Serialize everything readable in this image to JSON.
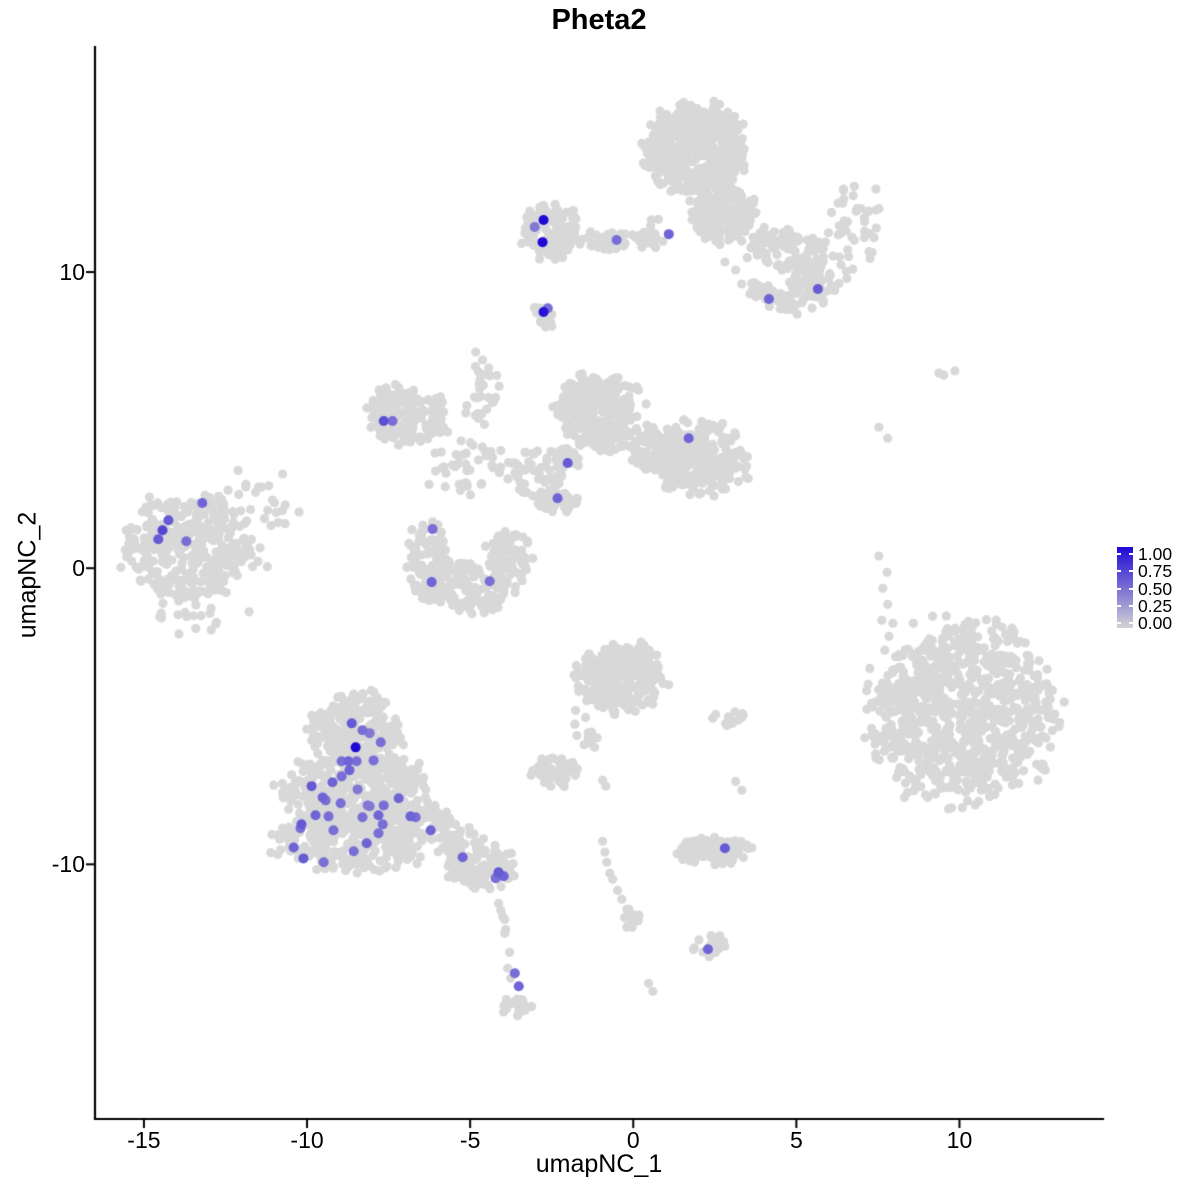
{
  "title": "Pheta2",
  "chart_data": {
    "type": "scatter",
    "title": "Pheta2",
    "xlabel": "umapNC_1",
    "ylabel": "umapNC_2",
    "xlim": [
      -16.5,
      14.4
    ],
    "ylim": [
      -18.6,
      17.6
    ],
    "x_ticks": [
      -15,
      -10,
      -5,
      0,
      5,
      10
    ],
    "y_ticks": [
      10,
      0,
      -10
    ],
    "grid": false,
    "background_point_color": "#d8d8d8",
    "color_low": "#d3d3d3",
    "color_high": "#1e09d6",
    "legend": {
      "position": "right",
      "labels": [
        "1.00",
        "0.75",
        "0.50",
        "0.25",
        "0.00"
      ],
      "values": [
        1.0,
        0.75,
        0.5,
        0.25,
        0.0
      ]
    },
    "clusters_format": "[center_x, center_y, radius_x, radius_y, n_points, rotation_deg]",
    "clusters": [
      [
        1.92,
        14.12,
        1.47,
        1.52,
        480,
        0
      ],
      [
        2.84,
        11.93,
        0.95,
        0.88,
        160,
        0
      ],
      [
        4.68,
        10.74,
        1.35,
        0.7,
        110,
        -20
      ],
      [
        5.51,
        9.56,
        0.74,
        0.68,
        70,
        0
      ],
      [
        4.22,
        9.16,
        0.95,
        0.3,
        45,
        -28
      ],
      [
        6.83,
        11.42,
        0.8,
        1.6,
        45,
        0
      ],
      [
        -0.69,
        11.05,
        1.25,
        0.32,
        40,
        0
      ],
      [
        -2.53,
        11.38,
        0.88,
        0.92,
        130,
        0
      ],
      [
        -2.78,
        8.55,
        0.28,
        0.45,
        16,
        30
      ],
      [
        -13.73,
        0.61,
        1.8,
        1.78,
        330,
        0
      ],
      [
        -11.67,
        1.62,
        1.3,
        1.5,
        45,
        0
      ],
      [
        -13.11,
        -1.59,
        1.6,
        0.8,
        18,
        0
      ],
      [
        -6.27,
        0.27,
        0.62,
        1.28,
        90,
        0
      ],
      [
        -5.05,
        -0.68,
        1.3,
        0.78,
        150,
        0
      ],
      [
        -3.82,
        0.41,
        0.68,
        0.85,
        80,
        0
      ],
      [
        -7.28,
        5.27,
        0.78,
        0.95,
        130,
        0
      ],
      [
        -6.27,
        5.0,
        0.55,
        0.85,
        45,
        0
      ],
      [
        -4.98,
        3.38,
        1.4,
        0.8,
        45,
        0
      ],
      [
        -4.68,
        6.01,
        0.55,
        1.25,
        26,
        0
      ],
      [
        -1.0,
        5.27,
        1.25,
        1.2,
        300,
        0
      ],
      [
        0.6,
        4.05,
        0.8,
        0.75,
        90,
        0
      ],
      [
        2.07,
        3.75,
        1.4,
        1.25,
        230,
        0
      ],
      [
        -2.22,
        3.58,
        0.6,
        0.6,
        35,
        0
      ],
      [
        -2.38,
        2.3,
        0.65,
        0.45,
        45,
        0
      ],
      [
        -3.08,
        3.24,
        0.8,
        0.75,
        35,
        0
      ],
      [
        0.54,
        11.25,
        0.45,
        0.6,
        14,
        0
      ],
      [
        -0.38,
        -3.68,
        1.3,
        1.1,
        280,
        0
      ],
      [
        -1.49,
        -5.44,
        0.3,
        0.85,
        14,
        15
      ],
      [
        -2.38,
        -6.89,
        0.7,
        0.5,
        55,
        0
      ],
      [
        2.9,
        -5.1,
        0.5,
        0.26,
        14,
        0
      ],
      [
        -8.51,
        -5.47,
        1.3,
        1.25,
        240,
        0
      ],
      [
        -8.51,
        -7.5,
        2.1,
        1.3,
        380,
        0
      ],
      [
        -8.66,
        -9.19,
        2.2,
        1.0,
        300,
        0
      ],
      [
        -6.27,
        -8.58,
        1.25,
        0.6,
        90,
        -20
      ],
      [
        -4.83,
        -9.93,
        1.15,
        0.8,
        120,
        -15
      ],
      [
        -3.57,
        -14.83,
        0.45,
        0.35,
        22,
        0
      ],
      [
        2.44,
        -9.53,
        1.0,
        0.5,
        85,
        0
      ],
      [
        2.32,
        -12.7,
        0.45,
        0.4,
        22,
        0
      ],
      [
        10.11,
        -4.86,
        2.7,
        2.9,
        850,
        0
      ],
      [
        -0.08,
        -11.72,
        0.3,
        0.5,
        12,
        0
      ]
    ],
    "background_points": [
      [
        -4.13,
        -11.32
      ],
      [
        -4.06,
        -11.55
      ],
      [
        -4.0,
        -11.76
      ],
      [
        -3.94,
        -11.86
      ],
      [
        -3.91,
        -12.2
      ],
      [
        -3.94,
        -12.33
      ],
      [
        -3.79,
        -12.97
      ],
      [
        -3.85,
        -13.51
      ],
      [
        -3.76,
        -13.85
      ],
      [
        -0.94,
        -9.22
      ],
      [
        -0.87,
        -9.59
      ],
      [
        -0.81,
        -9.93
      ],
      [
        -0.72,
        -10.3
      ],
      [
        -0.63,
        -10.5
      ],
      [
        -0.48,
        -10.88
      ],
      [
        -0.35,
        -11.18
      ],
      [
        -0.2,
        -11.52
      ],
      [
        -0.11,
        -11.79
      ],
      [
        -0.17,
        -12.09
      ],
      [
        0.47,
        -14.02
      ],
      [
        0.6,
        -14.29
      ],
      [
        7.53,
        0.41
      ],
      [
        7.78,
        -0.14
      ],
      [
        7.65,
        -0.68
      ],
      [
        7.8,
        -1.22
      ],
      [
        7.62,
        -1.76
      ],
      [
        7.84,
        -2.3
      ],
      [
        7.71,
        -2.77
      ],
      [
        7.96,
        -1.86
      ],
      [
        9.37,
        6.59
      ],
      [
        9.52,
        6.52
      ],
      [
        9.86,
        6.66
      ],
      [
        7.53,
        4.76
      ],
      [
        7.8,
        4.39
      ],
      [
        -10.75,
        3.18
      ],
      [
        -11.49,
        2.74
      ],
      [
        -11.06,
        2.3
      ],
      [
        -4.83,
        7.3
      ],
      [
        -4.62,
        7.03
      ],
      [
        -4.43,
        6.76
      ],
      [
        3.14,
        -7.2
      ],
      [
        3.33,
        -7.5
      ],
      [
        -0.94,
        -7.16
      ],
      [
        -0.84,
        -7.36
      ],
      [
        2.81,
        10.34
      ],
      [
        3.14,
        10.07
      ]
    ],
    "highlight_points_format": "[x, y, expression_value_0_to_1]",
    "highlight_points": [
      [
        -2.75,
        11.76,
        1.0
      ],
      [
        -2.78,
        11.01,
        1.0
      ],
      [
        -3.02,
        11.52,
        0.45
      ],
      [
        -0.51,
        11.08,
        0.5
      ],
      [
        1.09,
        11.28,
        0.55
      ],
      [
        5.66,
        9.43,
        0.6
      ],
      [
        4.16,
        9.09,
        0.55
      ],
      [
        -2.75,
        8.65,
        0.95
      ],
      [
        -2.62,
        8.78,
        0.5
      ],
      [
        -13.21,
        2.2,
        0.55
      ],
      [
        -14.25,
        1.62,
        0.6
      ],
      [
        -14.43,
        1.28,
        0.7
      ],
      [
        -14.56,
        0.98,
        0.6
      ],
      [
        -13.7,
        0.91,
        0.5
      ],
      [
        -7.65,
        4.97,
        0.65
      ],
      [
        -7.38,
        4.97,
        0.5
      ],
      [
        1.7,
        4.39,
        0.55
      ],
      [
        -2.01,
        3.55,
        0.6
      ],
      [
        -2.32,
        2.36,
        0.55
      ],
      [
        -6.15,
        1.32,
        0.5
      ],
      [
        -6.18,
        -0.47,
        0.55
      ],
      [
        -4.4,
        -0.44,
        0.5
      ],
      [
        -8.63,
        -5.24,
        0.6
      ],
      [
        -8.3,
        -5.47,
        0.5
      ],
      [
        -8.08,
        -5.57,
        0.45
      ],
      [
        -7.74,
        -5.88,
        0.5
      ],
      [
        -8.51,
        -6.05,
        1.0
      ],
      [
        -8.94,
        -6.52,
        0.5
      ],
      [
        -8.73,
        -6.52,
        0.55
      ],
      [
        -8.48,
        -6.52,
        0.5
      ],
      [
        -7.96,
        -6.49,
        0.5
      ],
      [
        -8.7,
        -6.82,
        0.55
      ],
      [
        -8.94,
        -7.03,
        0.5
      ],
      [
        -9.22,
        -7.23,
        0.55
      ],
      [
        -9.86,
        -7.36,
        0.6
      ],
      [
        -9.52,
        -7.74,
        0.55
      ],
      [
        -9.43,
        -7.84,
        0.5
      ],
      [
        -8.97,
        -7.94,
        0.5
      ],
      [
        -8.45,
        -7.47,
        0.45
      ],
      [
        -7.19,
        -7.77,
        0.55
      ],
      [
        -7.65,
        -8.01,
        0.5
      ],
      [
        -8.14,
        -8.01,
        0.45
      ],
      [
        -9.74,
        -8.34,
        0.55
      ],
      [
        -9.34,
        -8.38,
        0.5
      ],
      [
        -10.17,
        -8.65,
        0.6
      ],
      [
        -10.2,
        -8.78,
        0.5
      ],
      [
        -9.19,
        -8.85,
        0.5
      ],
      [
        -8.3,
        -8.41,
        0.5
      ],
      [
        -8.08,
        -8.04,
        0.45
      ],
      [
        -7.81,
        -8.34,
        0.55
      ],
      [
        -7.68,
        -8.65,
        0.5
      ],
      [
        -7.81,
        -8.95,
        0.5
      ],
      [
        -8.17,
        -9.29,
        0.55
      ],
      [
        -8.57,
        -9.56,
        0.5
      ],
      [
        -10.41,
        -9.43,
        0.55
      ],
      [
        -10.11,
        -9.8,
        0.6
      ],
      [
        -9.49,
        -9.93,
        0.5
      ],
      [
        -6.83,
        -8.38,
        0.55
      ],
      [
        -6.67,
        -8.41,
        0.5
      ],
      [
        -6.21,
        -8.85,
        0.55
      ],
      [
        -5.23,
        -9.76,
        0.55
      ],
      [
        -4.13,
        -10.27,
        0.6
      ],
      [
        -3.97,
        -10.4,
        0.55
      ],
      [
        -4.22,
        -10.47,
        0.5
      ],
      [
        -3.63,
        -13.68,
        0.5
      ],
      [
        -3.51,
        -14.12,
        0.55
      ],
      [
        2.81,
        -9.46,
        0.6
      ],
      [
        2.29,
        -12.87,
        0.55
      ]
    ]
  }
}
